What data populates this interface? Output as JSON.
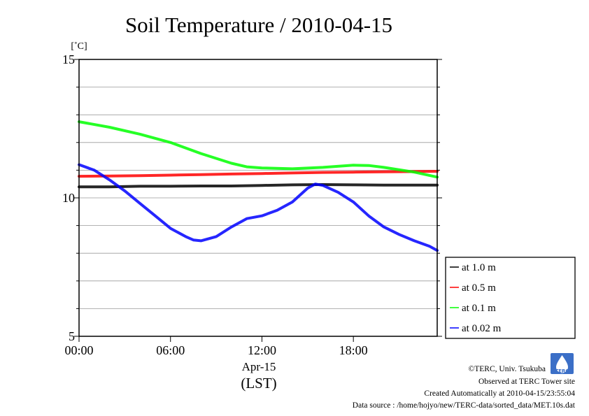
{
  "chart_data": {
    "type": "line",
    "title": "Soil Temperature / 2010-04-15",
    "ylabel": "[˚C]",
    "xlabel": "(LST)",
    "date_label": "Apr-15",
    "x_unit": "hours",
    "xlim": [
      0,
      23.5
    ],
    "ylim": [
      5,
      15
    ],
    "x_ticks": [
      0,
      6,
      12,
      18
    ],
    "x_tick_labels": [
      "00:00",
      "06:00",
      "12:00",
      "18:00"
    ],
    "y_ticks": [
      5,
      10,
      15
    ],
    "y_tick_labels": [
      "5",
      "10",
      "15"
    ],
    "y_minor_step": 1,
    "grid": true,
    "legend_position": "right",
    "series": [
      {
        "name": "at 1.0 m",
        "color": "#000000",
        "x": [
          0,
          2,
          4,
          6,
          8,
          10,
          12,
          14,
          16,
          18,
          20,
          22,
          23.5
        ],
        "y": [
          10.4,
          10.4,
          10.42,
          10.42,
          10.43,
          10.43,
          10.45,
          10.47,
          10.48,
          10.47,
          10.46,
          10.46,
          10.46
        ]
      },
      {
        "name": "at 0.5 m",
        "color": "#ff0000",
        "x": [
          0,
          2,
          4,
          6,
          8,
          10,
          12,
          14,
          16,
          18,
          20,
          22,
          23.5
        ],
        "y": [
          10.78,
          10.79,
          10.8,
          10.82,
          10.84,
          10.86,
          10.88,
          10.9,
          10.92,
          10.93,
          10.94,
          10.95,
          10.96
        ]
      },
      {
        "name": "at 0.1 m",
        "color": "#00ff00",
        "x": [
          0,
          2,
          4,
          6,
          8,
          10,
          11,
          12,
          14,
          16,
          18,
          19,
          20,
          22,
          23.5
        ],
        "y": [
          12.75,
          12.55,
          12.3,
          12.0,
          11.6,
          11.25,
          11.12,
          11.08,
          11.05,
          11.1,
          11.18,
          11.17,
          11.1,
          10.93,
          10.75
        ]
      },
      {
        "name": "at 0.02 m",
        "color": "#0000ff",
        "x": [
          0,
          1,
          2,
          3,
          4,
          5,
          6,
          7,
          7.5,
          8,
          9,
          10,
          11,
          12,
          13,
          14,
          15,
          15.5,
          16,
          17,
          18,
          19,
          20,
          21,
          22,
          23,
          23.5
        ],
        "y": [
          11.2,
          11.0,
          10.65,
          10.25,
          9.8,
          9.35,
          8.9,
          8.6,
          8.48,
          8.45,
          8.6,
          8.95,
          9.25,
          9.35,
          9.55,
          9.85,
          10.35,
          10.5,
          10.45,
          10.2,
          9.85,
          9.35,
          8.95,
          8.68,
          8.45,
          8.25,
          8.1
        ]
      }
    ]
  },
  "credits": {
    "copyright": "©TERC, Univ. Tsukuba",
    "observed": "Observed at TERC Tower site",
    "created": "Created Automatically at 2010-04-15/23:55:04",
    "source": "Data source : /home/hojyo/new/TERC-data/sorted_data/MET.10s.dat",
    "logo_text": "TERC"
  }
}
